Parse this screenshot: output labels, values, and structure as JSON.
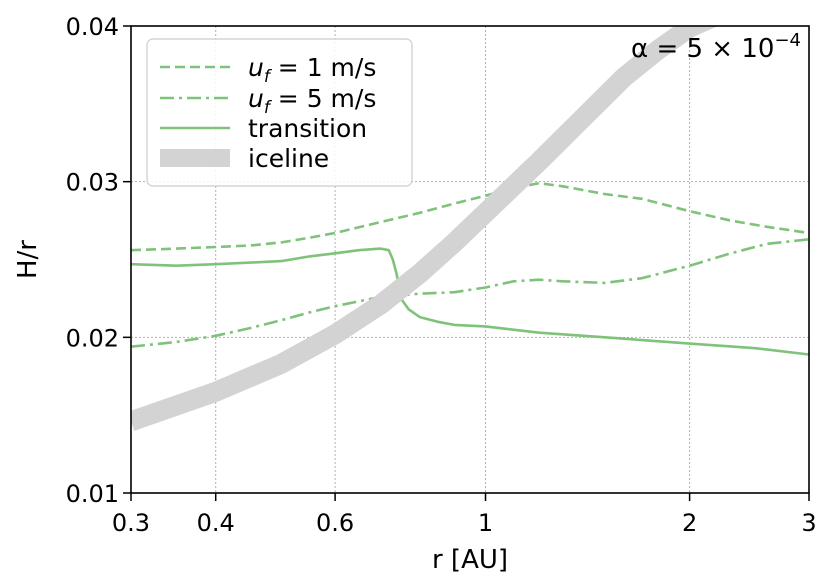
{
  "chart_data": {
    "type": "line",
    "xlabel": "r [AU]",
    "ylabel": "H/r",
    "xscale": "log",
    "xlim": [
      0.3,
      3
    ],
    "ylim": [
      0.01,
      0.04
    ],
    "xticks": [
      0.3,
      0.4,
      0.6,
      1,
      2,
      3
    ],
    "xtick_labels": [
      "0.3",
      "0.4",
      "0.6",
      "1",
      "2",
      "3"
    ],
    "yticks": [
      0.01,
      0.02,
      0.03,
      0.04
    ],
    "ytick_labels": [
      "0.01",
      "0.02",
      "0.03",
      "0.04"
    ],
    "grid": true,
    "legend_position": "top-left",
    "annotation": {
      "prefix": "α = 5 × 10",
      "exponent": "−4"
    },
    "series": [
      {
        "name": "u_f = 1 m/s",
        "legend_base": "u",
        "legend_sub": "f",
        "legend_rest": " = 1 m/s",
        "style": "dashed",
        "color": "#7fc27a",
        "x": [
          0.3,
          0.35,
          0.4,
          0.45,
          0.5,
          0.55,
          0.6,
          0.7,
          0.8,
          0.9,
          1.0,
          1.1,
          1.2,
          1.3,
          1.5,
          1.7,
          2.0,
          2.3,
          2.6,
          3.0
        ],
        "y": [
          0.0256,
          0.0257,
          0.0258,
          0.0259,
          0.0261,
          0.0264,
          0.0267,
          0.0274,
          0.028,
          0.0286,
          0.0291,
          0.0296,
          0.0299,
          0.0297,
          0.0292,
          0.0289,
          0.0281,
          0.0275,
          0.0271,
          0.0267
        ]
      },
      {
        "name": "u_f = 5 m/s",
        "legend_base": "u",
        "legend_sub": "f",
        "legend_rest": " = 5 m/s",
        "style": "dashdot",
        "color": "#7fc27a",
        "x": [
          0.3,
          0.35,
          0.4,
          0.45,
          0.5,
          0.55,
          0.6,
          0.7,
          0.8,
          0.9,
          1.0,
          1.1,
          1.2,
          1.3,
          1.5,
          1.7,
          2.0,
          2.3,
          2.6,
          3.0
        ],
        "y": [
          0.0194,
          0.0197,
          0.0201,
          0.0206,
          0.0211,
          0.0216,
          0.022,
          0.0226,
          0.0228,
          0.0229,
          0.0232,
          0.0236,
          0.0237,
          0.0236,
          0.0235,
          0.0238,
          0.0246,
          0.0254,
          0.026,
          0.0263
        ]
      },
      {
        "name": "transition",
        "style": "solid",
        "color": "#7fc27a",
        "x": [
          0.3,
          0.35,
          0.4,
          0.45,
          0.5,
          0.55,
          0.6,
          0.65,
          0.7,
          0.72,
          0.73,
          0.74,
          0.75,
          0.77,
          0.8,
          0.85,
          0.9,
          1.0,
          1.2,
          1.5,
          2.0,
          2.5,
          3.0
        ],
        "y": [
          0.0247,
          0.0246,
          0.0247,
          0.0248,
          0.0249,
          0.0252,
          0.0254,
          0.0256,
          0.0257,
          0.0256,
          0.025,
          0.024,
          0.0225,
          0.0218,
          0.0213,
          0.021,
          0.0208,
          0.0207,
          0.0203,
          0.02,
          0.0196,
          0.0193,
          0.0189
        ]
      },
      {
        "name": "iceline",
        "style": "band",
        "color": "#d3d3d3",
        "x": [
          0.3,
          0.4,
          0.5,
          0.6,
          0.7,
          0.8,
          0.9,
          1.0,
          1.2,
          1.4,
          1.6,
          1.8,
          2.0,
          2.2,
          2.4,
          2.6
        ],
        "y": [
          0.0146,
          0.0165,
          0.0183,
          0.0202,
          0.0221,
          0.0241,
          0.0261,
          0.028,
          0.0313,
          0.0342,
          0.0367,
          0.0385,
          0.0399,
          0.0407,
          0.0412,
          0.0416
        ]
      }
    ]
  }
}
